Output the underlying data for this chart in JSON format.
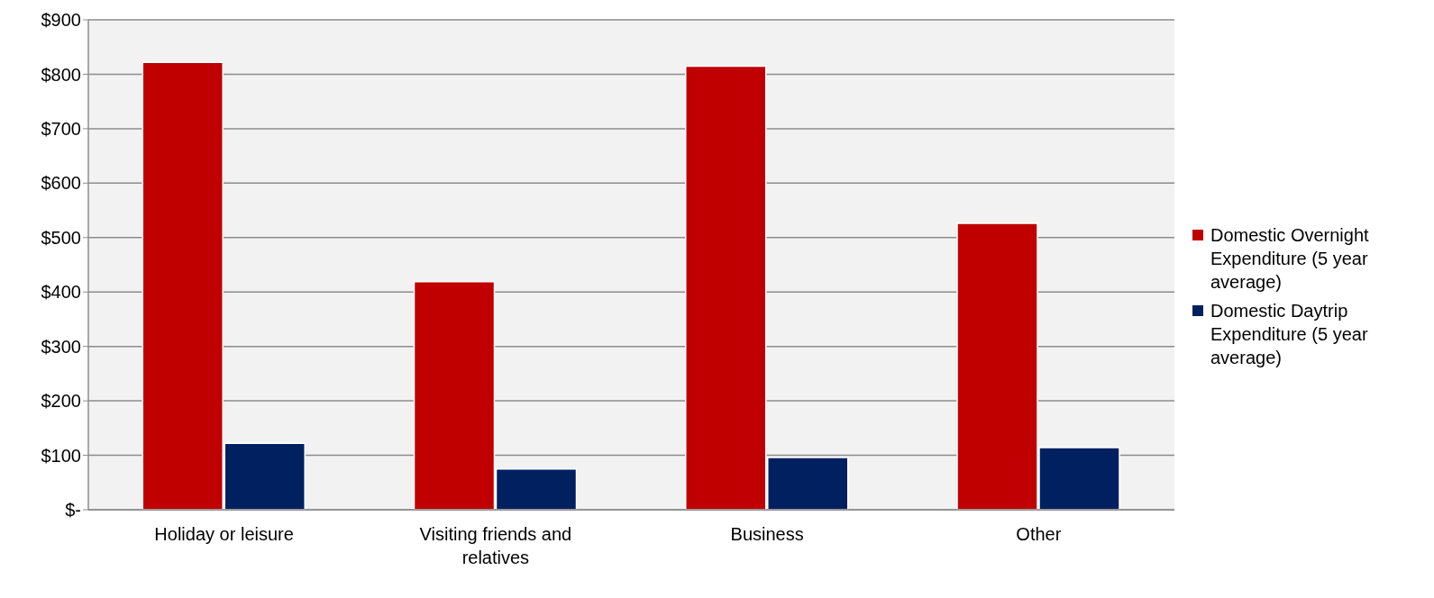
{
  "chart_data": {
    "type": "bar",
    "categories": [
      "Holiday or leisure",
      "Visiting friends and relatives",
      "Business",
      "Other"
    ],
    "series": [
      {
        "name": "Domestic Overnight Expenditure (5 year average)",
        "color": "#c00000",
        "values": [
          822,
          419,
          815,
          526
        ]
      },
      {
        "name": "Domestic Daytrip Expenditure (5 year average)",
        "color": "#002060",
        "values": [
          122,
          75,
          96,
          114
        ]
      }
    ],
    "ylim": [
      0,
      900
    ],
    "yticks": [
      {
        "value": 0,
        "label": "$-"
      },
      {
        "value": 100,
        "label": "$100"
      },
      {
        "value": 200,
        "label": "$200"
      },
      {
        "value": 300,
        "label": "$300"
      },
      {
        "value": 400,
        "label": "$400"
      },
      {
        "value": 500,
        "label": "$500"
      },
      {
        "value": 600,
        "label": "$600"
      },
      {
        "value": 700,
        "label": "$700"
      },
      {
        "value": 800,
        "label": "$800"
      },
      {
        "value": 900,
        "label": "$900"
      }
    ],
    "grid": "y",
    "legend": "right"
  }
}
